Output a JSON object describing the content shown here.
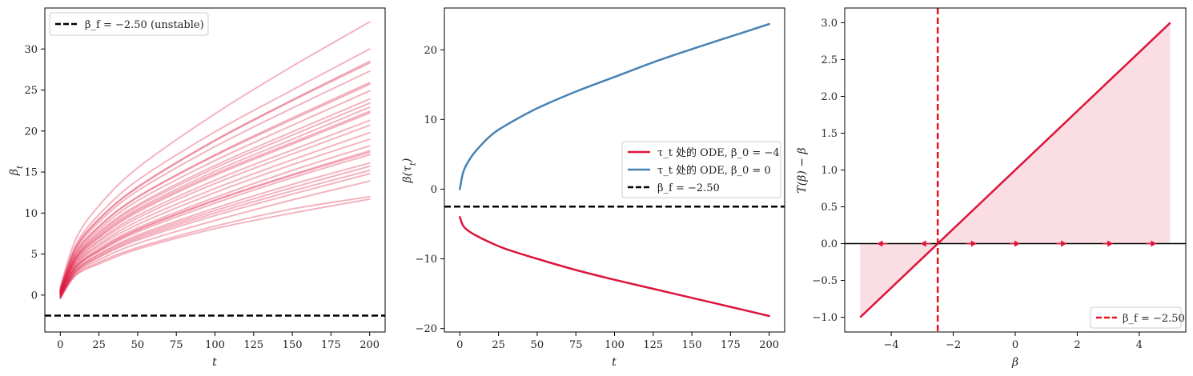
{
  "chart_data": [
    {
      "type": "line",
      "xlabel": "t",
      "ylabel": "β_t",
      "xlim": [
        -10,
        210
      ],
      "ylim": [
        -4.5,
        35
      ],
      "xticks": [
        0,
        25,
        50,
        75,
        100,
        125,
        150,
        175,
        200
      ],
      "yticks": [
        0,
        5,
        10,
        15,
        20,
        25,
        30
      ],
      "legend_position": "top-left",
      "colors": {
        "trajectories": "#dc143c",
        "reference": "#000000"
      },
      "reference_line": {
        "y": -2.5,
        "label": "β_f = −2.50 (unstable)",
        "style": "dashed"
      },
      "trajectory_series_note_count": 28,
      "series": [
        {
          "x": [
            0,
            10,
            25,
            50,
            100,
            150,
            200
          ],
          "values": [
            1.0,
            6.8,
            10.9,
            15.5,
            22.1,
            27.9,
            33.3
          ]
        },
        {
          "x": [
            0,
            10,
            25,
            50,
            100,
            150,
            200
          ],
          "values": [
            0.8,
            6.1,
            9.8,
            14.0,
            19.9,
            25.0,
            30.0
          ]
        },
        {
          "x": [
            0,
            10,
            25,
            50,
            100,
            150,
            200
          ],
          "values": [
            0.7,
            5.8,
            9.3,
            13.2,
            18.9,
            23.8,
            28.5
          ]
        },
        {
          "x": [
            0,
            10,
            25,
            50,
            100,
            150,
            200
          ],
          "values": [
            0.6,
            5.7,
            9.2,
            13.1,
            18.8,
            23.7,
            28.3
          ]
        },
        {
          "x": [
            0,
            10,
            25,
            50,
            100,
            150,
            200
          ],
          "values": [
            0.6,
            5.5,
            8.9,
            12.7,
            18.1,
            22.8,
            27.3
          ]
        },
        {
          "x": [
            0,
            10,
            25,
            50,
            100,
            150,
            200
          ],
          "values": [
            0.5,
            5.2,
            8.4,
            12.0,
            17.1,
            21.6,
            25.9
          ]
        },
        {
          "x": [
            0,
            10,
            25,
            50,
            100,
            150,
            200
          ],
          "values": [
            0.5,
            5.1,
            8.3,
            11.9,
            17.0,
            21.4,
            25.7
          ]
        },
        {
          "x": [
            0,
            10,
            25,
            50,
            100,
            150,
            200
          ],
          "values": [
            0.4,
            4.9,
            8.0,
            11.5,
            16.4,
            20.7,
            24.9
          ]
        },
        {
          "x": [
            0,
            10,
            25,
            50,
            100,
            150,
            200
          ],
          "values": [
            0.4,
            4.7,
            7.7,
            11.0,
            15.8,
            19.9,
            23.9
          ]
        },
        {
          "x": [
            0,
            10,
            25,
            50,
            100,
            150,
            200
          ],
          "values": [
            0.3,
            4.6,
            7.5,
            10.8,
            15.5,
            19.5,
            23.4
          ]
        },
        {
          "x": [
            0,
            10,
            25,
            50,
            100,
            150,
            200
          ],
          "values": [
            0.3,
            4.5,
            7.3,
            10.5,
            15.1,
            19.0,
            22.9
          ]
        },
        {
          "x": [
            0,
            10,
            25,
            50,
            100,
            150,
            200
          ],
          "values": [
            0.3,
            4.4,
            7.1,
            10.3,
            14.8,
            18.6,
            22.4
          ]
        },
        {
          "x": [
            0,
            10,
            25,
            50,
            100,
            150,
            200
          ],
          "values": [
            0.2,
            4.3,
            7.0,
            10.1,
            14.6,
            18.4,
            22.2
          ]
        },
        {
          "x": [
            0,
            10,
            25,
            50,
            100,
            150,
            200
          ],
          "values": [
            0.2,
            4.1,
            6.7,
            9.7,
            14.0,
            17.7,
            21.3
          ]
        },
        {
          "x": [
            0,
            10,
            25,
            50,
            100,
            150,
            200
          ],
          "values": [
            0.2,
            4.0,
            6.5,
            9.4,
            13.6,
            17.2,
            20.7
          ]
        },
        {
          "x": [
            0,
            10,
            25,
            50,
            100,
            150,
            200
          ],
          "values": [
            0.1,
            3.8,
            6.2,
            9.0,
            13.0,
            16.5,
            19.8
          ]
        },
        {
          "x": [
            0,
            10,
            25,
            50,
            100,
            150,
            200
          ],
          "values": [
            0.1,
            3.7,
            6.0,
            8.6,
            12.5,
            15.9,
            19.0
          ]
        },
        {
          "x": [
            0,
            10,
            25,
            50,
            100,
            150,
            200
          ],
          "values": [
            0.0,
            3.5,
            5.7,
            8.2,
            11.9,
            15.2,
            18.2
          ]
        },
        {
          "x": [
            0,
            10,
            25,
            50,
            100,
            150,
            200
          ],
          "values": [
            0.0,
            3.4,
            5.5,
            8.0,
            11.6,
            14.7,
            17.6
          ]
        },
        {
          "x": [
            0,
            10,
            25,
            50,
            100,
            150,
            200
          ],
          "values": [
            0.0,
            3.4,
            5.4,
            7.9,
            11.5,
            14.6,
            17.4
          ]
        },
        {
          "x": [
            0,
            10,
            25,
            50,
            100,
            150,
            200
          ],
          "values": [
            -0.1,
            3.3,
            5.3,
            7.7,
            11.2,
            14.3,
            17.1
          ]
        },
        {
          "x": [
            0,
            10,
            25,
            50,
            100,
            150,
            200
          ],
          "values": [
            -0.1,
            3.1,
            5.0,
            7.3,
            10.6,
            13.5,
            16.1
          ]
        },
        {
          "x": [
            0,
            10,
            25,
            50,
            100,
            150,
            200
          ],
          "values": [
            -0.2,
            3.0,
            4.9,
            7.1,
            10.3,
            13.1,
            15.7
          ]
        },
        {
          "x": [
            0,
            10,
            25,
            50,
            100,
            150,
            200
          ],
          "values": [
            -0.2,
            2.9,
            4.7,
            6.9,
            10.0,
            12.7,
            15.2
          ]
        },
        {
          "x": [
            0,
            10,
            25,
            50,
            100,
            150,
            200
          ],
          "values": [
            -0.3,
            2.8,
            4.6,
            6.7,
            9.7,
            12.3,
            14.8
          ]
        },
        {
          "x": [
            0,
            10,
            25,
            50,
            100,
            150,
            200
          ],
          "values": [
            -0.3,
            2.7,
            4.3,
            6.3,
            9.1,
            11.6,
            13.9
          ]
        },
        {
          "x": [
            0,
            10,
            25,
            50,
            100,
            150,
            200
          ],
          "values": [
            -0.4,
            2.5,
            4.0,
            5.8,
            8.4,
            10.5,
            12.0
          ]
        },
        {
          "x": [
            0,
            10,
            25,
            50,
            100,
            150,
            200
          ],
          "values": [
            -0.4,
            2.4,
            3.8,
            5.6,
            8.1,
            10.0,
            11.7
          ]
        }
      ]
    },
    {
      "type": "line",
      "xlabel": "t",
      "ylabel": "β(τ_t)",
      "xlim": [
        -10,
        210
      ],
      "ylim": [
        -20.5,
        26
      ],
      "xticks": [
        0,
        25,
        50,
        75,
        100,
        125,
        150,
        175,
        200
      ],
      "yticks": [
        -20,
        -10,
        0,
        10,
        20
      ],
      "legend_position": "center-right",
      "reference_line": {
        "y": -2.5,
        "label": "β_f = −2.50",
        "style": "dashed",
        "color": "#000000"
      },
      "series": [
        {
          "name": "τ_t 处的 ODE,  β_0 = −4",
          "color": "#dc143c",
          "x": [
            0,
            2,
            5,
            10,
            20,
            30,
            50,
            75,
            100,
            125,
            150,
            175,
            200
          ],
          "values": [
            -4.0,
            -5.2,
            -5.9,
            -6.6,
            -7.7,
            -8.6,
            -10.0,
            -11.6,
            -13.0,
            -14.3,
            -15.6,
            -16.9,
            -18.2
          ]
        },
        {
          "name": "τ_t 处的 ODE,  β_0 = 0",
          "color": "#4682b4",
          "x": [
            0,
            2,
            5,
            10,
            20,
            30,
            50,
            75,
            100,
            125,
            150,
            175,
            200
          ],
          "values": [
            0.0,
            2.3,
            3.8,
            5.4,
            7.7,
            9.2,
            11.6,
            14.0,
            16.1,
            18.2,
            20.1,
            21.9,
            23.7
          ]
        }
      ]
    },
    {
      "type": "line",
      "xlabel": "β",
      "ylabel": "T(β) − β",
      "xlim": [
        -5.5,
        5.5
      ],
      "ylim": [
        -1.2,
        3.2
      ],
      "xticks": [
        -4,
        -2,
        0,
        2,
        4
      ],
      "yticks": [
        -1.0,
        -0.5,
        0.0,
        0.5,
        1.0,
        1.5,
        2.0,
        2.5,
        3.0
      ],
      "legend_position": "bottom-right",
      "series": [
        {
          "name": "",
          "color": "#dc143c",
          "x": [
            -5,
            5
          ],
          "values": [
            -1.0,
            3.0
          ],
          "fill_to_zero": true
        }
      ],
      "horizontal_line": {
        "y": 0,
        "color": "#000000"
      },
      "vertical_line": {
        "x": -2.5,
        "label": "β_f = −2.50",
        "color": "#e8141e",
        "style": "dashed"
      },
      "flow_arrows": [
        {
          "x": -4.3,
          "direction": "left"
        },
        {
          "x": -2.9,
          "direction": "left"
        },
        {
          "x": -1.4,
          "direction": "right"
        },
        {
          "x": 0.0,
          "direction": "right"
        },
        {
          "x": 1.5,
          "direction": "right"
        },
        {
          "x": 3.0,
          "direction": "right"
        },
        {
          "x": 4.4,
          "direction": "right"
        }
      ]
    }
  ]
}
